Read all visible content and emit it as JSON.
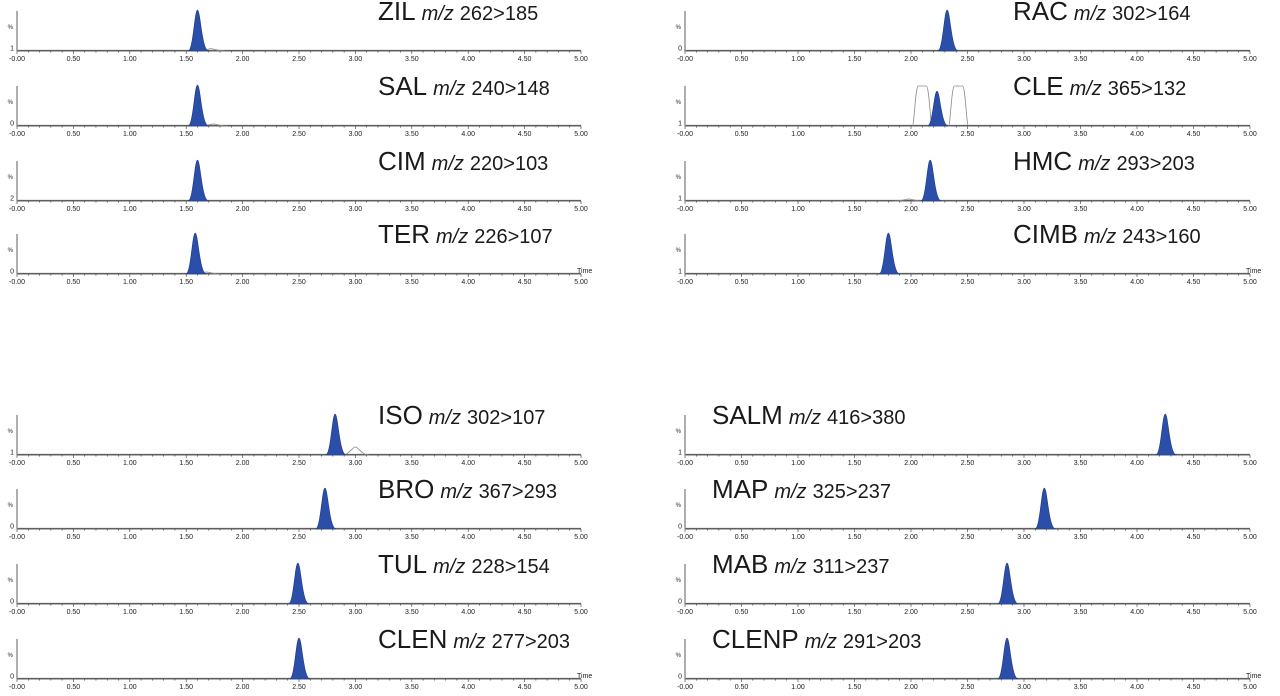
{
  "chart_data": [
    {
      "type": "line",
      "compound": "ZIL",
      "mz_label": "m/z",
      "transition": "262>185",
      "y_top_label": "%",
      "y_bottom_label": "1",
      "xlabel": "",
      "xlim": [
        0,
        5
      ],
      "x_ticks": [
        "-0.00",
        "0.50",
        "1.00",
        "1.50",
        "2.00",
        "2.50",
        "3.00",
        "3.50",
        "4.00",
        "4.50",
        "5.00"
      ],
      "peaks": [
        {
          "rt": 1.6,
          "height": 1.0,
          "filled": true
        }
      ],
      "ghost_peaks": [
        {
          "rt": 1.72,
          "height": 0.06
        }
      ]
    },
    {
      "type": "line",
      "compound": "SAL",
      "mz_label": "m/z",
      "transition": "240>148",
      "y_top_label": "%",
      "y_bottom_label": "0",
      "xlabel": "",
      "xlim": [
        0,
        5
      ],
      "x_ticks": [
        "-0.00",
        "0.50",
        "1.00",
        "1.50",
        "2.00",
        "2.50",
        "3.00",
        "3.50",
        "4.00",
        "4.50",
        "5.00"
      ],
      "peaks": [
        {
          "rt": 1.6,
          "height": 1.0,
          "filled": true
        }
      ],
      "ghost_peaks": [
        {
          "rt": 1.74,
          "height": 0.05
        }
      ]
    },
    {
      "type": "line",
      "compound": "CIM",
      "mz_label": "m/z",
      "transition": "220>103",
      "y_top_label": "%",
      "y_bottom_label": "2",
      "xlabel": "",
      "xlim": [
        0,
        5
      ],
      "x_ticks": [
        "-0.00",
        "0.50",
        "1.00",
        "1.50",
        "2.00",
        "2.50",
        "3.00",
        "3.50",
        "4.00",
        "4.50",
        "5.00"
      ],
      "peaks": [
        {
          "rt": 1.6,
          "height": 1.0,
          "filled": true
        }
      ],
      "ghost_peaks": []
    },
    {
      "type": "line",
      "compound": "TER",
      "mz_label": "m/z",
      "transition": "226>107",
      "y_top_label": "%",
      "y_bottom_label": "0",
      "xlabel": "Time",
      "xlim": [
        0,
        5
      ],
      "x_ticks": [
        "-0.00",
        "0.50",
        "1.00",
        "1.50",
        "2.00",
        "2.50",
        "3.00",
        "3.50",
        "4.00",
        "4.50",
        "5.00"
      ],
      "peaks": [
        {
          "rt": 1.58,
          "height": 1.0,
          "filled": true
        }
      ],
      "ghost_peaks": [
        {
          "rt": 1.68,
          "height": 0.05
        }
      ]
    },
    {
      "type": "line",
      "compound": "RAC",
      "mz_label": "m/z",
      "transition": "302>164",
      "y_top_label": "%",
      "y_bottom_label": "0",
      "xlabel": "",
      "xlim": [
        0,
        5
      ],
      "x_ticks": [
        "-0.00",
        "0.50",
        "1.00",
        "1.50",
        "2.00",
        "2.50",
        "3.00",
        "3.50",
        "4.00",
        "4.50",
        "5.00"
      ],
      "peaks": [
        {
          "rt": 2.32,
          "height": 1.0,
          "filled": true
        }
      ],
      "ghost_peaks": []
    },
    {
      "type": "line",
      "compound": "CLE",
      "mz_label": "m/z",
      "transition": "365>132",
      "y_top_label": "%",
      "y_bottom_label": "1",
      "xlabel": "",
      "xlim": [
        0,
        5
      ],
      "x_ticks": [
        "-0.00",
        "0.50",
        "1.00",
        "1.50",
        "2.00",
        "2.50",
        "3.00",
        "3.50",
        "4.00",
        "4.50",
        "5.00"
      ],
      "peaks": [
        {
          "rt": 2.23,
          "height": 0.85,
          "filled": true
        }
      ],
      "ghost_peaks": [
        {
          "rt": 2.1,
          "height": 1.0,
          "flat": true
        },
        {
          "rt": 2.42,
          "height": 1.0,
          "flat": true
        }
      ]
    },
    {
      "type": "line",
      "compound": "HMC",
      "mz_label": "m/z",
      "transition": "293>203",
      "y_top_label": "%",
      "y_bottom_label": "1",
      "xlabel": "",
      "xlim": [
        0,
        5
      ],
      "x_ticks": [
        "-0.00",
        "0.50",
        "1.00",
        "1.50",
        "2.00",
        "2.50",
        "3.00",
        "3.50",
        "4.00",
        "4.50",
        "5.00"
      ],
      "peaks": [
        {
          "rt": 2.17,
          "height": 1.0,
          "filled": true
        }
      ],
      "ghost_peaks": [
        {
          "rt": 1.98,
          "height": 0.05
        }
      ]
    },
    {
      "type": "line",
      "compound": "CIMB",
      "mz_label": "m/z",
      "transition": "243>160",
      "y_top_label": "%",
      "y_bottom_label": "1",
      "xlabel": "Time",
      "xlim": [
        0,
        5
      ],
      "x_ticks": [
        "-0.00",
        "0.50",
        "1.00",
        "1.50",
        "2.00",
        "2.50",
        "3.00",
        "3.50",
        "4.00",
        "4.50",
        "5.00"
      ],
      "peaks": [
        {
          "rt": 1.8,
          "height": 1.0,
          "filled": true
        }
      ],
      "ghost_peaks": []
    },
    {
      "type": "line",
      "compound": "ISO",
      "mz_label": "m/z",
      "transition": "302>107",
      "y_top_label": "%",
      "y_bottom_label": "1",
      "xlabel": "",
      "xlim": [
        0,
        5
      ],
      "x_ticks": [
        "-0.00",
        "0.50",
        "1.00",
        "1.50",
        "2.00",
        "2.50",
        "3.00",
        "3.50",
        "4.00",
        "4.50",
        "5.00"
      ],
      "peaks": [
        {
          "rt": 2.82,
          "height": 1.0,
          "filled": true
        }
      ],
      "ghost_peaks": [
        {
          "rt": 3.0,
          "height": 0.2
        }
      ]
    },
    {
      "type": "line",
      "compound": "BRO",
      "mz_label": "m/z",
      "transition": "367>293",
      "y_top_label": "%",
      "y_bottom_label": "0",
      "xlabel": "",
      "xlim": [
        0,
        5
      ],
      "x_ticks": [
        "-0.00",
        "0.50",
        "1.00",
        "1.50",
        "2.00",
        "2.50",
        "3.00",
        "3.50",
        "4.00",
        "4.50",
        "5.00"
      ],
      "peaks": [
        {
          "rt": 2.73,
          "height": 1.0,
          "filled": true
        }
      ],
      "ghost_peaks": []
    },
    {
      "type": "line",
      "compound": "TUL",
      "mz_label": "m/z",
      "transition": "228>154",
      "y_top_label": "%",
      "y_bottom_label": "0",
      "xlabel": "",
      "xlim": [
        0,
        5
      ],
      "x_ticks": [
        "-0.00",
        "0.50",
        "1.00",
        "1.50",
        "2.00",
        "2.50",
        "3.00",
        "3.50",
        "4.00",
        "4.50",
        "5.00"
      ],
      "peaks": [
        {
          "rt": 2.49,
          "height": 1.0,
          "filled": true
        }
      ],
      "ghost_peaks": []
    },
    {
      "type": "line",
      "compound": "CLEN",
      "mz_label": "m/z",
      "transition": "277>203",
      "y_top_label": "%",
      "y_bottom_label": "0",
      "xlabel": "Time",
      "xlim": [
        0,
        5
      ],
      "x_ticks": [
        "-0.00",
        "0.50",
        "1.00",
        "1.50",
        "2.00",
        "2.50",
        "3.00",
        "3.50",
        "4.00",
        "4.50",
        "5.00"
      ],
      "peaks": [
        {
          "rt": 2.5,
          "height": 1.0,
          "filled": true
        }
      ],
      "ghost_peaks": []
    },
    {
      "type": "line",
      "compound": "SALM",
      "mz_label": "m/z",
      "transition": "416>380",
      "y_top_label": "%",
      "y_bottom_label": "1",
      "xlabel": "",
      "xlim": [
        0,
        5
      ],
      "x_ticks": [
        "-0.00",
        "0.50",
        "1.00",
        "1.50",
        "2.00",
        "2.50",
        "3.00",
        "3.50",
        "4.00",
        "4.50",
        "5.00"
      ],
      "peaks": [
        {
          "rt": 4.25,
          "height": 1.0,
          "filled": true
        }
      ],
      "ghost_peaks": []
    },
    {
      "type": "line",
      "compound": "MAP",
      "mz_label": "m/z",
      "transition": "325>237",
      "y_top_label": "%",
      "y_bottom_label": "0",
      "xlabel": "",
      "xlim": [
        0,
        5
      ],
      "x_ticks": [
        "-0.00",
        "0.50",
        "1.00",
        "1.50",
        "2.00",
        "2.50",
        "3.00",
        "3.50",
        "4.00",
        "4.50",
        "5.00"
      ],
      "peaks": [
        {
          "rt": 3.18,
          "height": 1.0,
          "filled": true
        }
      ],
      "ghost_peaks": []
    },
    {
      "type": "line",
      "compound": "MAB",
      "mz_label": "m/z",
      "transition": "311>237",
      "y_top_label": "%",
      "y_bottom_label": "0",
      "xlabel": "",
      "xlim": [
        0,
        5
      ],
      "x_ticks": [
        "-0.00",
        "0.50",
        "1.00",
        "1.50",
        "2.00",
        "2.50",
        "3.00",
        "3.50",
        "4.00",
        "4.50",
        "5.00"
      ],
      "peaks": [
        {
          "rt": 2.85,
          "height": 1.0,
          "filled": true
        }
      ],
      "ghost_peaks": []
    },
    {
      "type": "line",
      "compound": "CLENP",
      "mz_label": "m/z",
      "transition": "291>203",
      "y_top_label": "%",
      "y_bottom_label": "0",
      "xlabel": "Time",
      "xlim": [
        0,
        5
      ],
      "x_ticks": [
        "-0.00",
        "0.50",
        "1.00",
        "1.50",
        "2.00",
        "2.50",
        "3.00",
        "3.50",
        "4.00",
        "4.50",
        "5.00"
      ],
      "peaks": [
        {
          "rt": 2.85,
          "height": 1.0,
          "filled": true
        }
      ],
      "ghost_peaks": []
    }
  ],
  "colors": {
    "peak_fill": "#2b4ea8",
    "peak_stroke": "#1d3a8a",
    "ghost": "#8a8a8a",
    "axis": "#333333"
  }
}
